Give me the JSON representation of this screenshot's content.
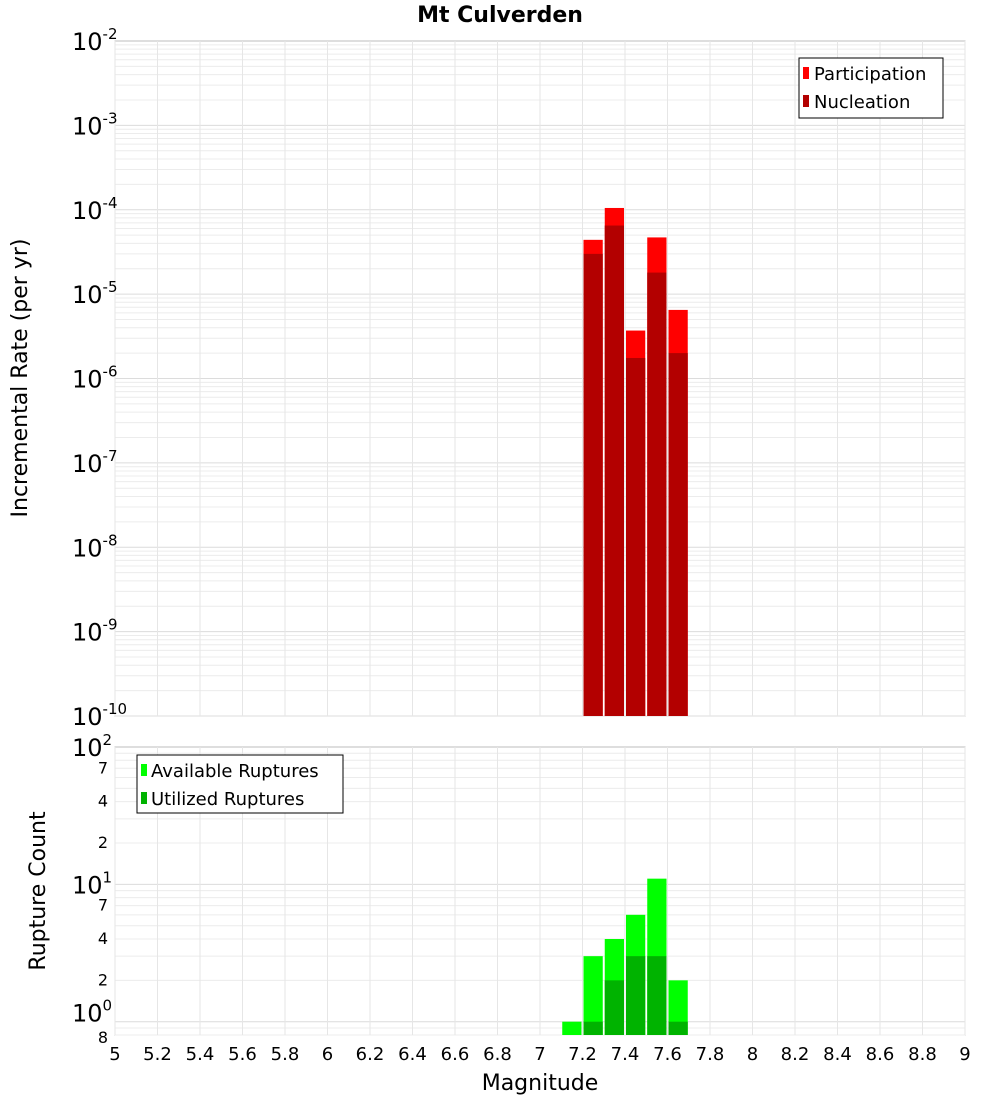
{
  "chart_data": [
    {
      "type": "bar",
      "title": "Mt Culverden",
      "ylabel": "Incremental Rate (per yr)",
      "xlabel": "",
      "yscale": "log",
      "ylim": [
        1e-10,
        0.01
      ],
      "xlim": [
        5,
        9
      ],
      "bin_width": 0.1,
      "x": [
        7.25,
        7.35,
        7.45,
        7.55,
        7.65
      ],
      "series": [
        {
          "name": "Participation",
          "color": "#ff0000",
          "values": [
            4.4e-05,
            0.000105,
            3.7e-06,
            4.7e-05,
            6.5e-06
          ]
        },
        {
          "name": "Nucleation",
          "color": "#b30000",
          "values": [
            3e-05,
            6.5e-05,
            1.75e-06,
            1.8e-05,
            2e-06
          ]
        }
      ],
      "legend": "top-right",
      "grid": true,
      "y_major_ticks": [
        {
          "base": "10",
          "exp": "-2"
        },
        {
          "base": "10",
          "exp": "-3"
        },
        {
          "base": "10",
          "exp": "-4"
        },
        {
          "base": "10",
          "exp": "-5"
        },
        {
          "base": "10",
          "exp": "-6"
        },
        {
          "base": "10",
          "exp": "-7"
        },
        {
          "base": "10",
          "exp": "-8"
        },
        {
          "base": "10",
          "exp": "-9"
        },
        {
          "base": "10",
          "exp": "-10"
        }
      ]
    },
    {
      "type": "bar",
      "title": "",
      "ylabel": "Rupture Count",
      "xlabel": "Magnitude",
      "yscale": "log",
      "ylim": [
        0.8,
        100
      ],
      "xlim": [
        5,
        9
      ],
      "bin_width": 0.1,
      "series": [
        {
          "name": "Available Ruptures",
          "color": "#00ff00",
          "x": [
            7.15,
            7.25,
            7.35,
            7.45,
            7.55,
            7.65
          ],
          "values": [
            1,
            3,
            4,
            6,
            11,
            2
          ]
        },
        {
          "name": "Utilized Ruptures",
          "color": "#00b300",
          "x": [
            7.25,
            7.35,
            7.45,
            7.55,
            7.65
          ],
          "values": [
            1,
            2,
            3,
            3,
            1
          ]
        }
      ],
      "legend": "top-left",
      "grid": true,
      "y_major_ticks": [
        {
          "base": "10",
          "exp": "2"
        },
        {
          "base": "10",
          "exp": "1"
        },
        {
          "base": "10",
          "exp": "0"
        }
      ],
      "y_minor_ticks": [
        "7",
        "4",
        "2",
        "7",
        "4",
        "2",
        "8"
      ],
      "x_ticks": [
        "5",
        "5.2",
        "5.4",
        "5.6",
        "5.8",
        "6",
        "6.2",
        "6.4",
        "6.6",
        "6.8",
        "7",
        "7.2",
        "7.4",
        "7.6",
        "7.8",
        "8",
        "8.2",
        "8.4",
        "8.6",
        "8.8",
        "9"
      ]
    }
  ]
}
